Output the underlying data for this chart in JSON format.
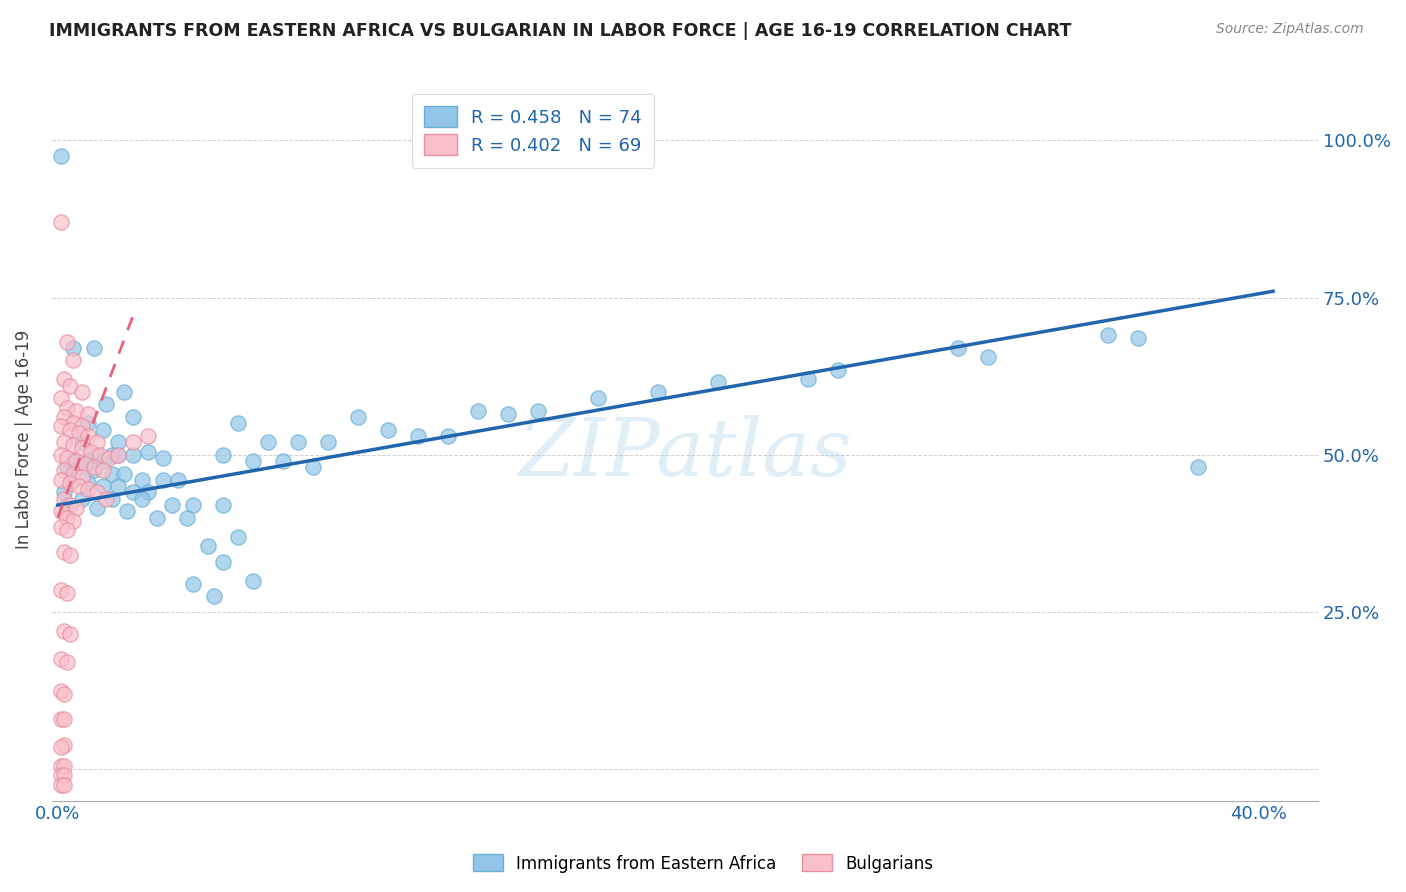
{
  "title": "IMMIGRANTS FROM EASTERN AFRICA VS BULGARIAN IN LABOR FORCE | AGE 16-19 CORRELATION CHART",
  "source": "Source: ZipAtlas.com",
  "ylabel": "In Labor Force | Age 16-19",
  "watermark": "ZIPatlas",
  "xlim": [
    -0.002,
    0.42
  ],
  "ylim": [
    -0.05,
    1.1
  ],
  "ytick_vals": [
    0.0,
    0.25,
    0.5,
    0.75,
    1.0
  ],
  "ytick_labels": [
    "",
    "25.0%",
    "50.0%",
    "75.0%",
    "100.0%"
  ],
  "xtick_vals": [
    0.0,
    0.05,
    0.1,
    0.15,
    0.2,
    0.25,
    0.3,
    0.35,
    0.4
  ],
  "series1": {
    "label": "Immigrants from Eastern Africa",
    "R": 0.458,
    "N": 74,
    "color": "#92C5E8",
    "edge_color": "#6AAFD6",
    "trendline_color": "#2166AC",
    "trendline_x": [
      0.0,
      0.405
    ],
    "trendline_y": [
      0.42,
      0.76
    ]
  },
  "series2": {
    "label": "Bulgarians",
    "R": 0.402,
    "N": 69,
    "color": "#F9BFCB",
    "edge_color": "#E88FA0",
    "trendline_color": "#E8627A",
    "trendline_x": [
      0.0,
      0.025
    ],
    "trendline_y": [
      0.4,
      0.72
    ]
  },
  "blue_points": [
    [
      0.001,
      0.975
    ],
    [
      0.005,
      0.67
    ],
    [
      0.012,
      0.67
    ],
    [
      0.022,
      0.6
    ],
    [
      0.016,
      0.58
    ],
    [
      0.025,
      0.56
    ],
    [
      0.01,
      0.55
    ],
    [
      0.015,
      0.54
    ],
    [
      0.02,
      0.52
    ],
    [
      0.008,
      0.52
    ],
    [
      0.013,
      0.5
    ],
    [
      0.018,
      0.5
    ],
    [
      0.03,
      0.505
    ],
    [
      0.025,
      0.5
    ],
    [
      0.02,
      0.5
    ],
    [
      0.035,
      0.495
    ],
    [
      0.015,
      0.49
    ],
    [
      0.01,
      0.49
    ],
    [
      0.005,
      0.49
    ],
    [
      0.003,
      0.48
    ],
    [
      0.008,
      0.48
    ],
    [
      0.012,
      0.475
    ],
    [
      0.018,
      0.47
    ],
    [
      0.022,
      0.47
    ],
    [
      0.028,
      0.46
    ],
    [
      0.035,
      0.46
    ],
    [
      0.04,
      0.46
    ],
    [
      0.005,
      0.46
    ],
    [
      0.01,
      0.455
    ],
    [
      0.015,
      0.45
    ],
    [
      0.02,
      0.45
    ],
    [
      0.025,
      0.44
    ],
    [
      0.03,
      0.44
    ],
    [
      0.002,
      0.44
    ],
    [
      0.008,
      0.43
    ],
    [
      0.018,
      0.43
    ],
    [
      0.028,
      0.43
    ],
    [
      0.038,
      0.42
    ],
    [
      0.045,
      0.42
    ],
    [
      0.055,
      0.42
    ],
    [
      0.003,
      0.42
    ],
    [
      0.013,
      0.415
    ],
    [
      0.023,
      0.41
    ],
    [
      0.033,
      0.4
    ],
    [
      0.043,
      0.4
    ],
    [
      0.06,
      0.55
    ],
    [
      0.07,
      0.52
    ],
    [
      0.08,
      0.52
    ],
    [
      0.09,
      0.52
    ],
    [
      0.1,
      0.56
    ],
    [
      0.11,
      0.54
    ],
    [
      0.12,
      0.53
    ],
    [
      0.13,
      0.53
    ],
    [
      0.055,
      0.5
    ],
    [
      0.065,
      0.49
    ],
    [
      0.075,
      0.49
    ],
    [
      0.085,
      0.48
    ],
    [
      0.05,
      0.355
    ],
    [
      0.06,
      0.37
    ],
    [
      0.055,
      0.33
    ],
    [
      0.065,
      0.3
    ],
    [
      0.045,
      0.295
    ],
    [
      0.052,
      0.275
    ],
    [
      0.15,
      0.565
    ],
    [
      0.2,
      0.6
    ],
    [
      0.22,
      0.615
    ],
    [
      0.25,
      0.62
    ],
    [
      0.3,
      0.67
    ],
    [
      0.35,
      0.69
    ],
    [
      0.38,
      0.48
    ],
    [
      0.14,
      0.57
    ],
    [
      0.16,
      0.57
    ],
    [
      0.18,
      0.59
    ],
    [
      0.26,
      0.635
    ],
    [
      0.31,
      0.655
    ],
    [
      0.36,
      0.685
    ]
  ],
  "pink_points": [
    [
      0.001,
      0.87
    ],
    [
      0.003,
      0.68
    ],
    [
      0.005,
      0.65
    ],
    [
      0.002,
      0.62
    ],
    [
      0.004,
      0.61
    ],
    [
      0.008,
      0.6
    ],
    [
      0.001,
      0.59
    ],
    [
      0.003,
      0.575
    ],
    [
      0.006,
      0.57
    ],
    [
      0.01,
      0.565
    ],
    [
      0.002,
      0.56
    ],
    [
      0.005,
      0.55
    ],
    [
      0.008,
      0.545
    ],
    [
      0.001,
      0.545
    ],
    [
      0.004,
      0.54
    ],
    [
      0.007,
      0.535
    ],
    [
      0.01,
      0.53
    ],
    [
      0.013,
      0.52
    ],
    [
      0.002,
      0.52
    ],
    [
      0.005,
      0.515
    ],
    [
      0.008,
      0.51
    ],
    [
      0.011,
      0.505
    ],
    [
      0.014,
      0.5
    ],
    [
      0.017,
      0.495
    ],
    [
      0.001,
      0.5
    ],
    [
      0.003,
      0.495
    ],
    [
      0.006,
      0.49
    ],
    [
      0.009,
      0.485
    ],
    [
      0.012,
      0.48
    ],
    [
      0.015,
      0.475
    ],
    [
      0.002,
      0.475
    ],
    [
      0.005,
      0.47
    ],
    [
      0.008,
      0.465
    ],
    [
      0.001,
      0.46
    ],
    [
      0.004,
      0.455
    ],
    [
      0.007,
      0.45
    ],
    [
      0.01,
      0.445
    ],
    [
      0.013,
      0.44
    ],
    [
      0.016,
      0.43
    ],
    [
      0.002,
      0.43
    ],
    [
      0.004,
      0.42
    ],
    [
      0.006,
      0.415
    ],
    [
      0.001,
      0.41
    ],
    [
      0.003,
      0.4
    ],
    [
      0.005,
      0.395
    ],
    [
      0.001,
      0.385
    ],
    [
      0.003,
      0.38
    ],
    [
      0.02,
      0.5
    ],
    [
      0.025,
      0.52
    ],
    [
      0.03,
      0.53
    ],
    [
      0.002,
      0.345
    ],
    [
      0.004,
      0.34
    ],
    [
      0.001,
      0.285
    ],
    [
      0.003,
      0.28
    ],
    [
      0.002,
      0.22
    ],
    [
      0.004,
      0.215
    ],
    [
      0.001,
      0.175
    ],
    [
      0.003,
      0.17
    ],
    [
      0.001,
      0.125
    ],
    [
      0.002,
      0.12
    ],
    [
      0.001,
      0.08
    ],
    [
      0.002,
      0.08
    ],
    [
      0.002,
      0.038
    ],
    [
      0.001,
      0.035
    ],
    [
      0.001,
      0.005
    ],
    [
      0.002,
      0.005
    ],
    [
      0.001,
      -0.01
    ],
    [
      0.002,
      -0.01
    ],
    [
      0.001,
      -0.025
    ],
    [
      0.002,
      -0.025
    ]
  ]
}
